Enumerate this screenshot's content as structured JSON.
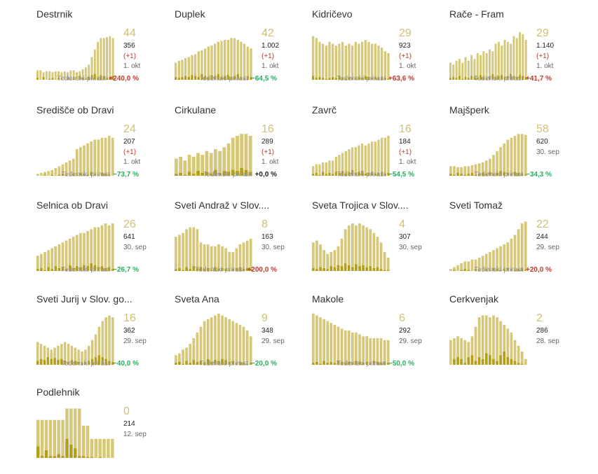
{
  "growth_label": "Tedenski prirast",
  "colors": {
    "bar_light": "#d6c878",
    "bar_dark": "#b59f1a",
    "accent": "#d1bf72",
    "neg": "#c0392b",
    "pos": "#27ae60",
    "neutral": "#222222"
  },
  "chart_data": [
    {
      "type": "bar",
      "title": "Destrnik",
      "active": "44",
      "total": "356",
      "delta": "(+1)",
      "date": "1. okt",
      "growth": "+240,0 %",
      "growth_sign": "neg",
      "values": [
        10,
        10,
        8,
        9,
        9,
        8,
        9,
        9,
        8,
        9,
        8,
        10,
        10,
        8,
        9,
        11,
        13,
        16,
        24,
        32,
        40,
        44,
        44,
        45,
        46,
        44
      ],
      "new": [
        2,
        0,
        3,
        0,
        1,
        2,
        0,
        2,
        1,
        0,
        3,
        1,
        2,
        0,
        4,
        2,
        1,
        3,
        5,
        6,
        2,
        5,
        4,
        2,
        3,
        4
      ]
    },
    {
      "type": "bar",
      "title": "Duplek",
      "active": "42",
      "total": "1.002",
      "delta": "(+1)",
      "date": "1. okt",
      "growth": "−64,5 %",
      "growth_sign": "pos",
      "values": [
        18,
        20,
        21,
        23,
        24,
        26,
        27,
        30,
        31,
        33,
        35,
        36,
        38,
        40,
        41,
        42,
        42,
        44,
        44,
        42,
        40,
        38,
        35,
        33
      ],
      "new": [
        3,
        2,
        3,
        4,
        3,
        5,
        4,
        3,
        6,
        4,
        3,
        5,
        4,
        6,
        3,
        4,
        5,
        3,
        4,
        6,
        3,
        2,
        4,
        3
      ]
    },
    {
      "type": "bar",
      "title": "Kidričevo",
      "active": "29",
      "total": "923",
      "delta": "(+1)",
      "date": "1. okt",
      "growth": "+63,6 %",
      "growth_sign": "neg",
      "values": [
        46,
        44,
        40,
        38,
        36,
        40,
        38,
        36,
        38,
        40,
        36,
        38,
        36,
        40,
        38,
        40,
        42,
        40,
        38,
        38,
        36,
        34,
        30,
        28
      ],
      "new": [
        4,
        2,
        3,
        2,
        1,
        2,
        3,
        2,
        4,
        2,
        1,
        3,
        2,
        2,
        3,
        2,
        4,
        3,
        2,
        3,
        2,
        3,
        2,
        1
      ]
    },
    {
      "type": "bar",
      "title": "Rače - Fram",
      "active": "29",
      "total": "1.140",
      "delta": "(+1)",
      "date": "1. okt",
      "growth": "+41,7 %",
      "growth_sign": "neg",
      "values": [
        18,
        16,
        20,
        22,
        18,
        24,
        20,
        26,
        22,
        28,
        26,
        30,
        28,
        32,
        30,
        38,
        40,
        36,
        42,
        40,
        38,
        46,
        44,
        50,
        48,
        42
      ],
      "new": [
        2,
        3,
        2,
        4,
        1,
        3,
        2,
        4,
        3,
        2,
        5,
        3,
        2,
        4,
        6,
        3,
        4,
        5,
        3,
        4,
        6,
        4,
        3,
        5,
        4,
        3
      ]
    },
    {
      "type": "bar",
      "title": "Središče ob Dravi",
      "active": "24",
      "total": "207",
      "delta": "(+1)",
      "date": "1. okt",
      "growth": "−73,7 %",
      "growth_sign": "pos",
      "values": [
        2,
        3,
        4,
        5,
        6,
        8,
        10,
        12,
        14,
        16,
        18,
        28,
        30,
        32,
        34,
        36,
        38,
        38,
        40,
        40,
        42,
        40
      ],
      "new": [
        0,
        0,
        1,
        0,
        1,
        0,
        1,
        2,
        1,
        0,
        2,
        1,
        3,
        2,
        1,
        4,
        2,
        1,
        3,
        2,
        1,
        0
      ]
    },
    {
      "type": "bar",
      "title": "Cirkulane",
      "active": "16",
      "total": "289",
      "delta": "(+1)",
      "date": "1. okt",
      "growth": "+0,0 %",
      "growth_sign": "neutral",
      "values": [
        18,
        20,
        16,
        22,
        20,
        24,
        22,
        26,
        24,
        28,
        26,
        30,
        34,
        40,
        42,
        44,
        44,
        42
      ],
      "new": [
        2,
        3,
        1,
        4,
        2,
        5,
        3,
        4,
        2,
        6,
        3,
        5,
        4,
        6,
        5,
        8,
        6,
        4
      ]
    },
    {
      "type": "bar",
      "title": "Zavrč",
      "active": "16",
      "total": "184",
      "delta": "(+1)",
      "date": "1. okt",
      "growth": "−54,5 %",
      "growth_sign": "pos",
      "values": [
        10,
        12,
        12,
        14,
        14,
        16,
        16,
        20,
        22,
        24,
        26,
        28,
        30,
        30,
        32,
        34,
        32,
        34,
        36,
        36,
        38,
        40,
        40,
        42
      ],
      "new": [
        2,
        3,
        1,
        4,
        2,
        3,
        2,
        4,
        3,
        5,
        2,
        4,
        6,
        3,
        4,
        5,
        2,
        3,
        4,
        2,
        3,
        4,
        2,
        3
      ]
    },
    {
      "type": "bar",
      "title": "Majšperk",
      "active": "58",
      "total": "620",
      "delta": "",
      "date": "30. sep",
      "growth": "−34,3 %",
      "growth_sign": "pos",
      "values": [
        10,
        10,
        9,
        9,
        10,
        10,
        11,
        12,
        13,
        14,
        16,
        18,
        22,
        26,
        30,
        34,
        38,
        40,
        42,
        44,
        44,
        43
      ],
      "new": [
        2,
        1,
        3,
        2,
        1,
        2,
        3,
        1,
        2,
        3,
        2,
        4,
        2,
        3,
        5,
        4,
        3,
        2,
        4,
        3,
        2,
        1
      ]
    },
    {
      "type": "bar",
      "title": "Selnica ob Dravi",
      "active": "26",
      "total": "641",
      "delta": "",
      "date": "30. sep",
      "growth": "−26,7 %",
      "growth_sign": "pos",
      "values": [
        16,
        18,
        20,
        22,
        24,
        26,
        28,
        30,
        32,
        34,
        36,
        38,
        40,
        40,
        42,
        44,
        46,
        46,
        48,
        50,
        48,
        50
      ],
      "new": [
        2,
        3,
        1,
        4,
        2,
        5,
        3,
        4,
        2,
        6,
        3,
        5,
        4,
        6,
        5,
        8,
        6,
        4,
        5,
        3,
        4,
        2
      ]
    },
    {
      "type": "bar",
      "title": "Sveti Andraž v Slov....",
      "active": "8",
      "total": "163",
      "delta": "",
      "date": "30. sep",
      "growth": "+200,0 %",
      "growth_sign": "neg",
      "values": [
        36,
        38,
        40,
        44,
        46,
        46,
        44,
        30,
        28,
        28,
        26,
        26,
        28,
        26,
        24,
        20,
        20,
        24,
        28,
        30,
        32,
        34
      ],
      "new": [
        2,
        3,
        1,
        4,
        2,
        5,
        3,
        4,
        2,
        3,
        1,
        4,
        2,
        3,
        2,
        1,
        2,
        3,
        4,
        2,
        3,
        2
      ]
    },
    {
      "type": "bar",
      "title": "Sveta Trojica v Slov....",
      "active": "4",
      "total": "307",
      "delta": "",
      "date": "30. sep",
      "growth": "",
      "growth_sign": "neutral",
      "values": [
        30,
        32,
        28,
        22,
        18,
        20,
        22,
        26,
        34,
        44,
        48,
        50,
        48,
        50,
        48,
        46,
        44,
        40,
        36,
        30,
        20,
        14
      ],
      "new": [
        3,
        2,
        4,
        3,
        2,
        5,
        4,
        6,
        5,
        8,
        6,
        4,
        7,
        5,
        6,
        4,
        5,
        3,
        4,
        2,
        1,
        1
      ]
    },
    {
      "type": "bar",
      "title": "Sveti Tomaž",
      "active": "22",
      "total": "244",
      "delta": "",
      "date": "29. sep",
      "growth": "+20,0 %",
      "growth_sign": "neg",
      "values": [
        2,
        4,
        6,
        8,
        10,
        10,
        12,
        12,
        14,
        16,
        18,
        20,
        22,
        24,
        26,
        28,
        30,
        34,
        38,
        44,
        50,
        52
      ],
      "new": [
        0,
        1,
        0,
        1,
        2,
        1,
        0,
        2,
        1,
        0,
        2,
        1,
        3,
        2,
        1,
        2,
        3,
        2,
        1,
        2,
        3,
        1
      ]
    },
    {
      "type": "bar",
      "title": "Sveti Jurij v Slov. go...",
      "active": "16",
      "total": "362",
      "delta": "",
      "date": "29. sep",
      "growth": "−40,0 %",
      "growth_sign": "pos",
      "values": [
        24,
        22,
        20,
        18,
        16,
        18,
        20,
        22,
        24,
        22,
        20,
        18,
        16,
        14,
        16,
        20,
        26,
        32,
        40,
        46,
        50,
        52,
        50
      ],
      "new": [
        4,
        6,
        5,
        8,
        6,
        7,
        5,
        6,
        4,
        3,
        5,
        4,
        3,
        2,
        3,
        4,
        6,
        8,
        10,
        8,
        6,
        4,
        3
      ]
    },
    {
      "type": "bar",
      "title": "Sveta Ana",
      "active": "9",
      "total": "348",
      "delta": "",
      "date": "29. sep",
      "growth": "−20,0 %",
      "growth_sign": "pos",
      "values": [
        10,
        12,
        16,
        18,
        22,
        28,
        34,
        40,
        46,
        48,
        50,
        52,
        54,
        52,
        50,
        48,
        46,
        44,
        42,
        40,
        36,
        30
      ],
      "new": [
        2,
        3,
        1,
        4,
        2,
        5,
        3,
        4,
        2,
        6,
        3,
        5,
        4,
        6,
        5,
        3,
        4,
        2,
        3,
        2,
        1,
        2
      ]
    },
    {
      "type": "bar",
      "title": "Makole",
      "active": "6",
      "total": "292",
      "delta": "",
      "date": "29. sep",
      "growth": "−50,0 %",
      "growth_sign": "pos",
      "values": [
        54,
        52,
        50,
        48,
        46,
        44,
        42,
        40,
        38,
        36,
        36,
        34,
        34,
        32,
        30,
        30,
        28,
        28,
        28,
        28,
        26,
        26
      ],
      "new": [
        2,
        3,
        1,
        4,
        2,
        3,
        2,
        4,
        3,
        2,
        3,
        2,
        4,
        3,
        2,
        3,
        2,
        4,
        3,
        2,
        3,
        2
      ]
    },
    {
      "type": "bar",
      "title": "Cerkvenjak",
      "active": "2",
      "total": "286",
      "delta": "",
      "date": "28. sep",
      "growth": "",
      "growth_sign": "neutral",
      "values": [
        26,
        28,
        30,
        28,
        26,
        24,
        30,
        40,
        50,
        52,
        52,
        50,
        52,
        50,
        46,
        42,
        38,
        34,
        26,
        20,
        14,
        6
      ],
      "new": [
        0,
        6,
        8,
        6,
        2,
        8,
        10,
        4,
        8,
        6,
        12,
        10,
        6,
        4,
        10,
        14,
        8,
        6,
        4,
        2,
        1,
        0
      ]
    },
    {
      "type": "bar",
      "title": "Podlehnik",
      "active": "0",
      "total": "214",
      "delta": "",
      "date": "12. sep",
      "growth": "",
      "growth_sign": "neutral",
      "values": [
        40,
        40,
        40,
        40,
        40,
        40,
        40,
        52,
        52,
        52,
        52,
        34,
        34,
        20,
        20,
        20,
        20,
        20,
        20
      ],
      "new": [
        12,
        2,
        8,
        2,
        2,
        4,
        2,
        20,
        14,
        10,
        2,
        2,
        1,
        1,
        0,
        1,
        0,
        0,
        0
      ]
    }
  ]
}
